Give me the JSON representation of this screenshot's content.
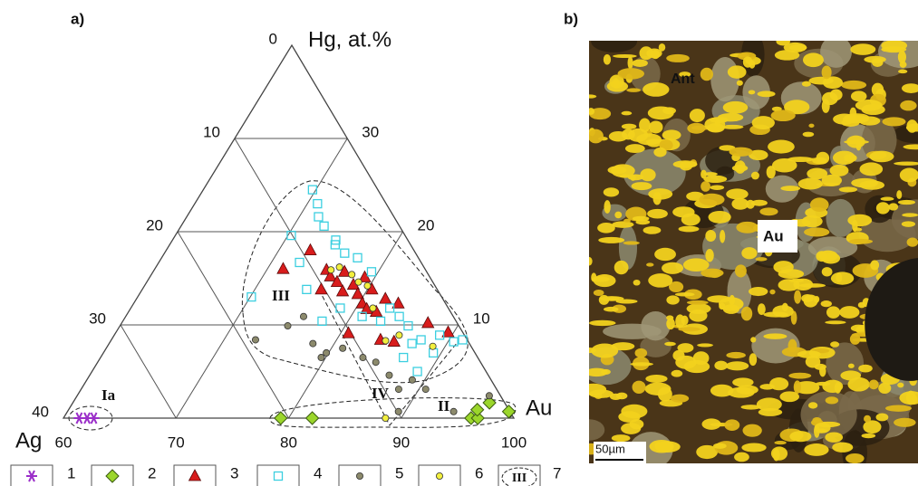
{
  "chart_data": {
    "type": "ternary",
    "panel": "a)",
    "axis_top": "Hg, at.%",
    "axis_left": "Ag",
    "axis_right": "Au",
    "au_lim": [
      60,
      100
    ],
    "hg_lim": [
      0,
      40
    ],
    "au_ticks": [
      60,
      70,
      80,
      90,
      100
    ],
    "ag_ticks": [
      0,
      10,
      20,
      30,
      40
    ],
    "hg_ticks": [
      10,
      20,
      30
    ],
    "grid": true,
    "series": [
      {
        "name": "1",
        "marker": "asterisk",
        "color": "#9b2fc9",
        "au": [
          61.4,
          62.1,
          62.7
        ],
        "hg": [
          0,
          0,
          0
        ]
      },
      {
        "name": "2",
        "marker": "diamond",
        "color": "#9bd62b",
        "au": [
          79.3,
          82.1,
          96.2,
          96.8,
          97.0,
          99.2,
          96.3
        ],
        "hg": [
          0,
          0,
          0,
          0,
          1.65,
          0.7,
          0.9
        ]
      },
      {
        "name": "3",
        "marker": "triangle",
        "color": "#d81c1c",
        "au": [
          71.4,
          72.8,
          75.3,
          76.0,
          76.9,
          77.0,
          78.5,
          79.4,
          80.3,
          81.0,
          80.4,
          82.0,
          77.9,
          80.7,
          83.9,
          85.2,
          87.2,
          89.5,
          82.1,
          83.5,
          75.9,
          79.1
        ],
        "hg": [
          16.0,
          18.0,
          15.9,
          15.2,
          14.6,
          15.7,
          14.3,
          13.3,
          12.3,
          11.7,
          13.8,
          11.4,
          13.6,
          9.1,
          8.4,
          8.2,
          10.2,
          9.2,
          12.8,
          12.3,
          13.8,
          15.1
        ]
      },
      {
        "name": "4",
        "marker": "square",
        "color": "#3ccfe0",
        "au": [
          69.7,
          70.9,
          71.7,
          72.7,
          74.5,
          70.3,
          72.5,
          70.1,
          74.6,
          74.7,
          76.0,
          77.4,
          79.4,
          83.0,
          84.3,
          85.6,
          86.9,
          87.5,
          89.3,
          88.9,
          90.5,
          91.2,
          88.9,
          86.9,
          82.9,
          81.0,
          77.7,
          78.6
        ],
        "hg": [
          24.5,
          23.0,
          21.6,
          20.6,
          19.1,
          19.6,
          16.7,
          13.0,
          13.8,
          18.6,
          17.7,
          17.2,
          15.7,
          11.8,
          10.9,
          9.9,
          8.0,
          8.4,
          7.0,
          8.9,
          8.2,
          8.4,
          5.0,
          6.5,
          10.4,
          10.9,
          10.4,
          11.8
        ]
      },
      {
        "name": "5",
        "marker": "circle",
        "color": "#8c8a6c",
        "au": [
          72.8,
          74.9,
          75.8,
          79.8,
          78.1,
          81.0,
          83.3,
          84.7,
          86.6,
          88.2,
          88.9,
          90.6,
          89.4,
          94.3,
          96.6,
          79.6
        ],
        "hg": [
          8.4,
          9.9,
          10.9,
          7.0,
          8.0,
          7.5,
          6.5,
          6.0,
          4.6,
          3.1,
          4.1,
          3.1,
          0.7,
          0.7,
          2.4,
          6.5
        ]
      },
      {
        "name": "6",
        "marker": "circle",
        "color": "#f2ef3e",
        "au": [
          75.7,
          76.3,
          77.8,
          78.8,
          79.8,
          81.5,
          84.4,
          85.3,
          88.9,
          88.6
        ],
        "hg": [
          15.9,
          16.2,
          15.4,
          14.6,
          14.2,
          11.8,
          8.3,
          8.9,
          7.7,
          0
        ]
      }
    ],
    "fields": [
      "Ia",
      "II",
      "III",
      "IV"
    ],
    "legend_field": {
      "name": "7",
      "symbol": "III"
    }
  },
  "photo": {
    "panel": "b)",
    "labels": [
      "Ant",
      "Au"
    ],
    "scale_bar": "50µm"
  }
}
